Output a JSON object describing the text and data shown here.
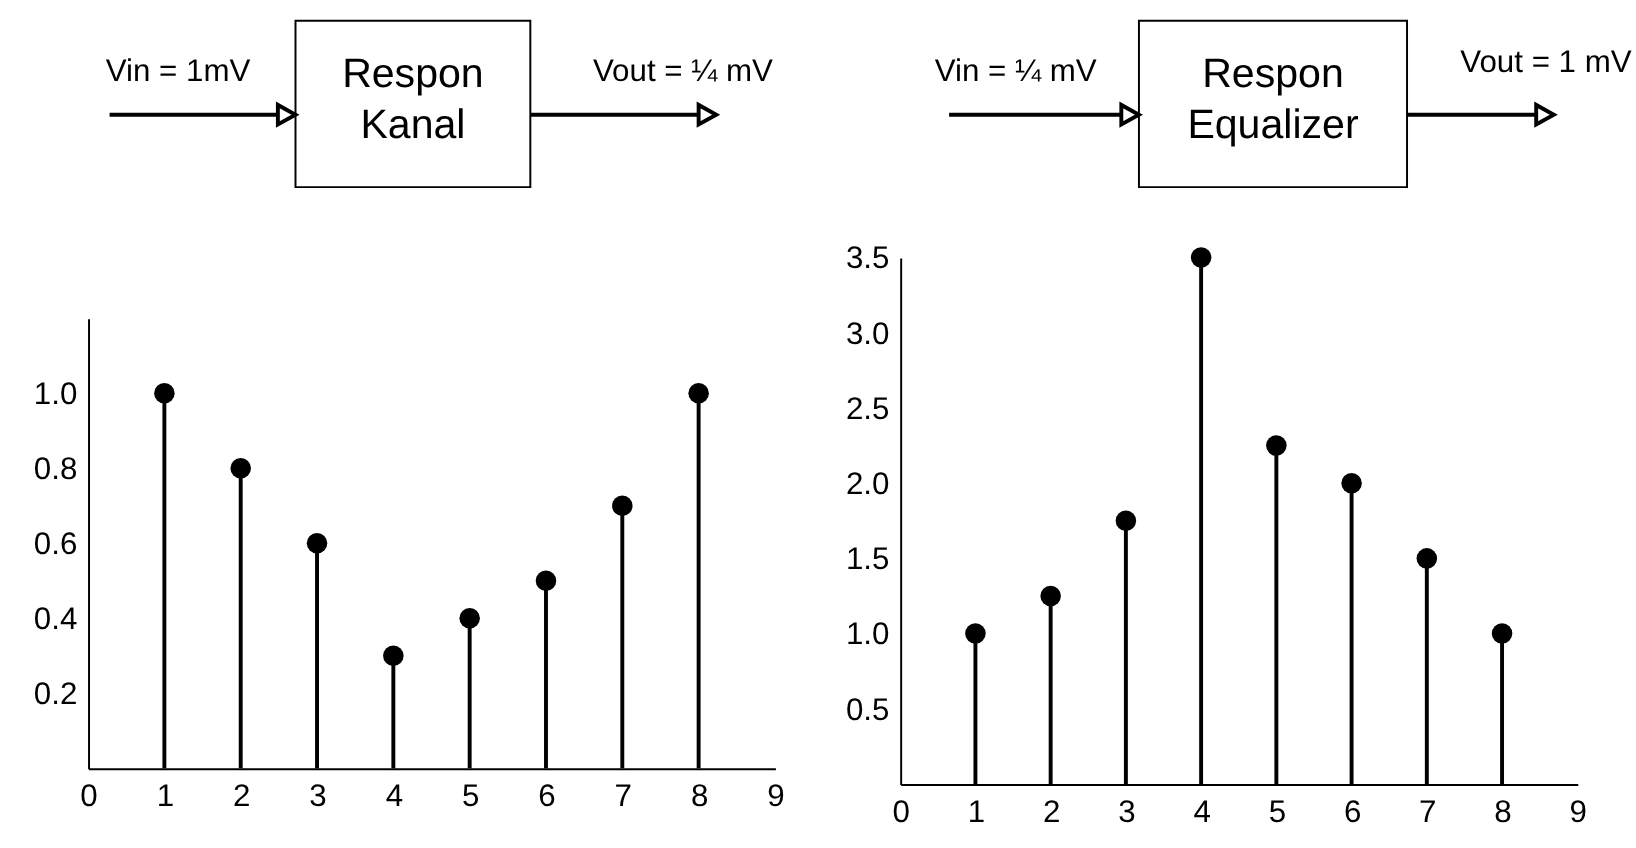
{
  "chart_data": [
    {
      "type": "lollipop",
      "annotations": [
        "Vin = 1mV",
        "Respon Kanal",
        "Vout = ¼ mV"
      ],
      "x": [
        1,
        2,
        3,
        4,
        5,
        6,
        7,
        8
      ],
      "series": [
        {
          "color": "#000000",
          "values": [
            1.0,
            0.8,
            0.6,
            0.3,
            0.4,
            0.5,
            0.7,
            1.0
          ]
        }
      ],
      "xlim": [
        0,
        9
      ],
      "xticks": [
        0,
        1,
        2,
        3,
        4,
        5,
        6,
        7,
        8,
        9
      ],
      "ylim": [
        0,
        1.2
      ],
      "yticks": [
        0.2,
        0.4,
        0.6,
        0.8,
        {
          "value": 1,
          "label": "1.0"
        }
      ],
      "marker": "circle"
    },
    {
      "type": "lollipop",
      "annotations": [
        "Vin = ¼ mV",
        "Respon Equalizer",
        "Vout = 1 mV"
      ],
      "x": [
        1,
        2,
        3,
        4,
        5,
        6,
        7,
        8
      ],
      "series": [
        {
          "color": "#000000",
          "values": [
            1.0,
            1.25,
            1.75,
            3.5,
            2.25,
            2.0,
            1.5,
            1.0
          ]
        }
      ],
      "xlim": [
        0,
        9
      ],
      "xticks": [
        0,
        1,
        2,
        3,
        4,
        5,
        6,
        7,
        8,
        9
      ],
      "ylim": [
        0,
        3.5
      ],
      "yticks": [
        0.5,
        {
          "value": 1,
          "label": "1.0"
        },
        1.5,
        {
          "value": 2,
          "label": "2.0"
        },
        2.5,
        {
          "value": 3,
          "label": "3.0"
        },
        3.5
      ],
      "marker": "circle"
    }
  ]
}
